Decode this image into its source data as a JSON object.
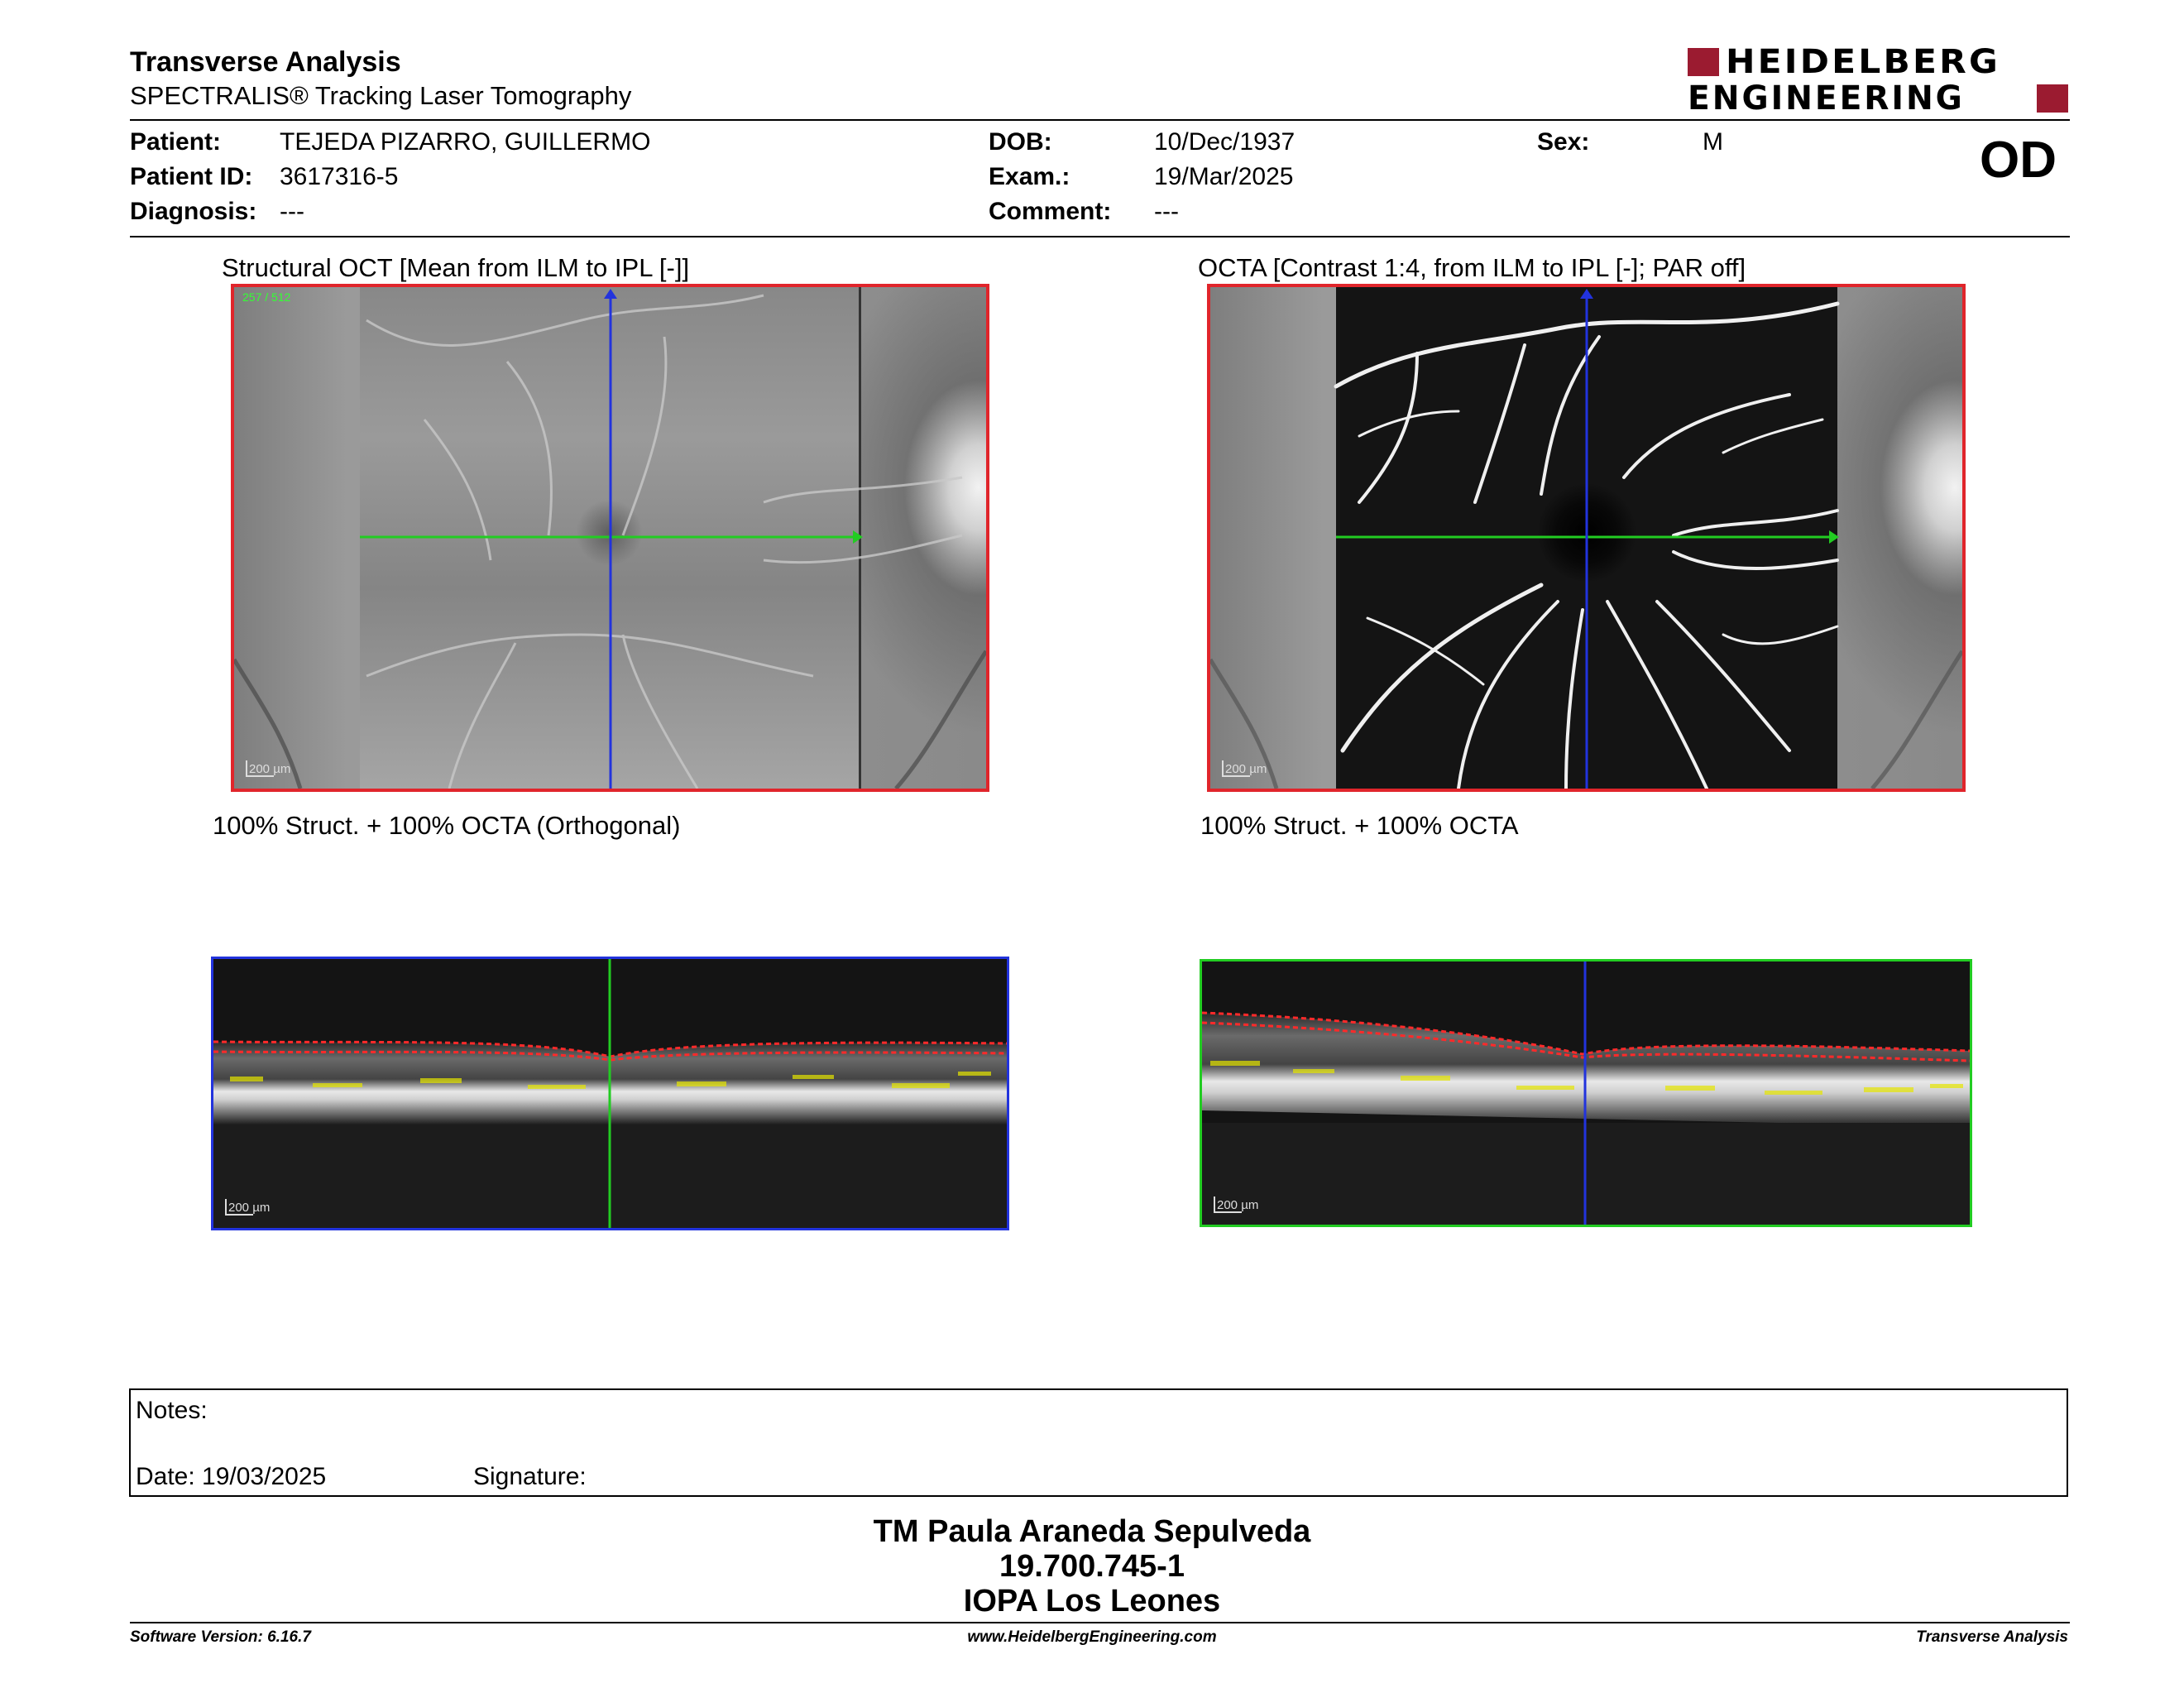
{
  "header": {
    "title": "Transverse Analysis",
    "subtitle": "SPECTRALIS® Tracking Laser Tomography",
    "logo_line1": "HEIDELBERG",
    "logo_line2": "ENGINEERING",
    "brand_color": "#9b1b30"
  },
  "patient": {
    "patient_label": "Patient:",
    "patient_value": "TEJEDA PIZARRO, GUILLERMO",
    "patient_id_label": "Patient ID:",
    "patient_id_value": "3617316-5",
    "diagnosis_label": "Diagnosis:",
    "diagnosis_value": "---",
    "dob_label": "DOB:",
    "dob_value": "10/Dec/1937",
    "exam_label": "Exam.:",
    "exam_value": "19/Mar/2025",
    "comment_label": "Comment:",
    "comment_value": "---",
    "sex_label": "Sex:",
    "sex_value": "M",
    "eye": "OD"
  },
  "panels": {
    "left_caption": "Structural OCT [Mean from ILM to IPL [-]]",
    "right_caption": "OCTA [Contrast 1:4, from ILM to IPL [-]; PAR off]",
    "left_overlay_caption": "100% Struct. + 100% OCTA (Orthogonal)",
    "right_overlay_caption": "100% Struct. + 100% OCTA",
    "scale_label": "200 µm",
    "frame_counter": "257 / 512",
    "frame_color": "#e0252b",
    "horizontal_line_color": "#22cc22",
    "vertical_line_color": "#2233dd"
  },
  "notes": {
    "notes_label": "Notes:",
    "date_label": "Date: 19/03/2025",
    "signature_label": "Signature:"
  },
  "footer": {
    "line1": "TM Paula Araneda Sepulveda",
    "line2": "19.700.745-1",
    "line3": "IOPA Los Leones",
    "software_version": "Software Version: 6.16.7",
    "website": "www.HeidelbergEngineering.com",
    "report_type": "Transverse Analysis"
  }
}
